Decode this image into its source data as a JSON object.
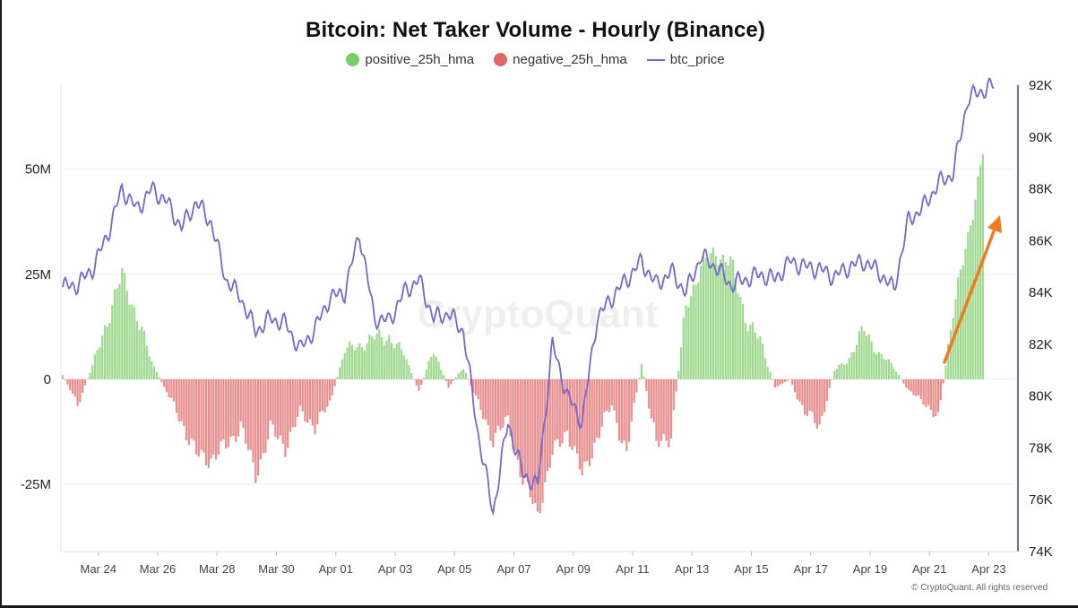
{
  "title": "Bitcoin: Net Taker Volume - Hourly (Binance)",
  "legend": [
    {
      "label": "positive_25h_hma",
      "color": "#7dcc6a",
      "shape": "dot"
    },
    {
      "label": "negative_25h_hma",
      "color": "#e06666",
      "shape": "dot"
    },
    {
      "label": "btc_price",
      "color": "#7766cc",
      "shape": "line"
    }
  ],
  "watermark": "CryptoQuant",
  "copyright": "© CryptoQuant. All rights reserved",
  "annotation": {
    "type": "arrow",
    "color": "#f07a22",
    "meaning": "rising net taker volume"
  },
  "chart_data": {
    "type": "bar+line",
    "x_ticks": [
      "Mar 24",
      "Mar 26",
      "Mar 28",
      "Mar 30",
      "Apr 01",
      "Apr 03",
      "Apr 05",
      "Apr 07",
      "Apr 09",
      "Apr 11",
      "Apr 13",
      "Apr 15",
      "Apr 17",
      "Apr 19",
      "Apr 21",
      "Apr 23"
    ],
    "x_range_days": [
      0,
      31.7
    ],
    "x_tick_days": [
      1.2,
      3.2,
      5.2,
      7.2,
      9.2,
      11.2,
      13.2,
      15.2,
      17.2,
      19.2,
      21.2,
      23.2,
      25.2,
      27.2,
      29.2,
      31.2
    ],
    "y_left": {
      "label": "",
      "ticks": [
        "-25M",
        "0",
        "25M",
        "50M"
      ],
      "tick_values": [
        -25,
        0,
        25,
        50
      ],
      "range": [
        -41,
        70
      ],
      "unit": "M"
    },
    "y_right": {
      "label": "",
      "ticks": [
        "74K",
        "76K",
        "78K",
        "80K",
        "82K",
        "84K",
        "86K",
        "88K",
        "90K",
        "92K"
      ],
      "tick_values": [
        74,
        76,
        78,
        80,
        82,
        84,
        86,
        88,
        90,
        92
      ],
      "range": [
        74,
        92
      ],
      "unit": "K"
    },
    "net_taker_volume": {
      "name": "positive_25h_hma / negative_25h_hma",
      "unit": "M",
      "x_days": [
        0.0,
        0.5,
        1.0,
        1.5,
        2.0,
        2.5,
        3.0,
        3.5,
        4.0,
        4.5,
        5.0,
        5.5,
        6.0,
        6.5,
        7.0,
        7.5,
        8.0,
        8.5,
        9.0,
        9.5,
        10.0,
        10.5,
        11.0,
        11.5,
        12.0,
        12.5,
        13.0,
        13.5,
        14.0,
        14.5,
        15.0,
        15.5,
        16.0,
        16.5,
        17.0,
        17.5,
        18.0,
        18.5,
        19.0,
        19.5,
        20.0,
        20.5,
        21.0,
        21.5,
        22.0,
        22.5,
        23.0,
        23.5,
        24.0,
        24.5,
        25.0,
        25.5,
        26.0,
        26.5,
        27.0,
        27.5,
        28.0,
        28.5,
        29.0,
        29.5,
        30.0,
        30.5,
        31.0
      ],
      "values": [
        1,
        -6,
        3,
        14,
        25,
        15,
        4,
        -3,
        -10,
        -18,
        -19,
        -16,
        -11,
        -23,
        -12,
        -16,
        -8,
        -11,
        -6,
        7,
        8,
        10,
        10,
        6,
        -3,
        7,
        -2,
        3,
        -6,
        -14,
        -10,
        -24,
        -32,
        -18,
        -12,
        -23,
        -14,
        -6,
        -18,
        4,
        -16,
        -13,
        17,
        27,
        30,
        28,
        15,
        9,
        -2,
        0,
        -8,
        -11,
        2,
        5,
        12,
        6,
        3,
        -3,
        -5,
        -10,
        17,
        33,
        55
      ]
    },
    "btc_price": {
      "name": "btc_price",
      "unit": "K",
      "x_days": [
        0.0,
        0.5,
        1.0,
        1.5,
        2.0,
        2.5,
        3.0,
        3.5,
        4.0,
        4.5,
        5.0,
        5.5,
        6.0,
        6.5,
        7.0,
        7.5,
        8.0,
        8.5,
        9.0,
        9.5,
        10.0,
        10.5,
        11.0,
        11.5,
        12.0,
        12.5,
        13.0,
        13.5,
        14.0,
        14.5,
        15.0,
        15.5,
        16.0,
        16.5,
        17.0,
        17.5,
        18.0,
        18.5,
        19.0,
        19.5,
        20.0,
        20.5,
        21.0,
        21.5,
        22.0,
        22.5,
        23.0,
        23.5,
        24.0,
        24.5,
        25.0,
        25.5,
        26.0,
        26.5,
        27.0,
        27.5,
        28.0,
        28.5,
        29.0,
        29.5,
        30.0,
        30.5,
        31.0,
        31.4
      ],
      "values": [
        84.2,
        84.3,
        84.9,
        86.2,
        88.0,
        87.2,
        88.0,
        87.5,
        86.5,
        87.5,
        86.7,
        84.5,
        83.8,
        82.5,
        83.0,
        82.8,
        81.8,
        82.6,
        83.8,
        84.0,
        86.3,
        83.0,
        82.9,
        84.0,
        84.5,
        83.0,
        83.2,
        82.5,
        78.5,
        75.5,
        79.0,
        77.0,
        76.5,
        82.0,
        80.0,
        79.0,
        83.0,
        83.8,
        84.5,
        85.2,
        84.3,
        84.8,
        84.0,
        85.4,
        85.0,
        84.3,
        84.5,
        84.7,
        84.5,
        85.2,
        85.0,
        84.9,
        84.6,
        85.0,
        85.2,
        84.8,
        84.1,
        86.8,
        87.3,
        88.2,
        88.6,
        91.5,
        91.8,
        92.0
      ]
    },
    "grid": true,
    "legend_position": "top-center"
  }
}
